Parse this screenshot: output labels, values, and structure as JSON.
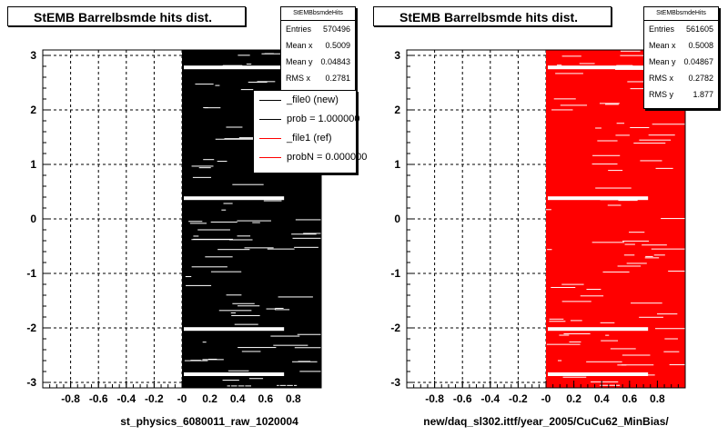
{
  "chart_data": [
    {
      "type": "heatmap",
      "title": "StEMB Barrelbsmde hits dist.",
      "xlabel": "st_physics_6080011_raw_1020004",
      "ylabel": "",
      "xlim": [
        -1,
        1
      ],
      "ylim": [
        -3.1,
        3.1
      ],
      "x_ticks": [
        -0.8,
        -0.6,
        -0.4,
        -0.2,
        0,
        0.2,
        0.4,
        0.6,
        0.8
      ],
      "x_tick_labels": [
        "-0.8",
        "-0.6",
        "-0.4",
        "-0.2",
        "-0",
        "0.2",
        "0.4",
        "0.6",
        "0.8"
      ],
      "y_ticks": [
        -3,
        -2,
        -1,
        0,
        1,
        2,
        3
      ],
      "y_tick_labels": [
        "-3",
        "-2",
        "-1",
        "0",
        "1",
        "2",
        "3"
      ],
      "grid": true,
      "fill_color": "#000000",
      "filled_x_range": [
        0,
        1
      ],
      "filled_y_range": [
        -3.1,
        3.1
      ],
      "gap_bands_y": [
        2.78,
        0.38,
        -2.02,
        -2.85
      ],
      "stats": {
        "title": "StEMBbsmdeHits",
        "rows": [
          {
            "label": "Entries",
            "value": "570496"
          },
          {
            "label": "Mean x",
            "value": "0.5009"
          },
          {
            "label": "Mean y",
            "value": "0.04843"
          },
          {
            "label": "RMS x",
            "value": "0.2781"
          }
        ]
      },
      "legend": {
        "placement": "top-right",
        "entries": [
          {
            "label": "_file0 (new)",
            "color": "#000000"
          },
          {
            "label": "prob = 1.000000",
            "color": "#000000"
          },
          {
            "label": "_file1 (ref)",
            "color": "#ff0000"
          },
          {
            "label": "probN = 0.000000",
            "color": "#ff0000"
          }
        ]
      }
    },
    {
      "type": "heatmap",
      "title": "StEMB Barrelbsmde hits dist.",
      "xlabel": "new/daq_sl302.ittf/year_2005/CuCu62_MinBias/",
      "ylabel": "",
      "xlim": [
        -1,
        1
      ],
      "ylim": [
        -3.1,
        3.1
      ],
      "x_ticks": [
        -0.8,
        -0.6,
        -0.4,
        -0.2,
        0,
        0.2,
        0.4,
        0.6,
        0.8
      ],
      "x_tick_labels": [
        "-0.8",
        "-0.6",
        "-0.4",
        "-0.2",
        "-0",
        "0.2",
        "0.4",
        "0.6",
        "0.8"
      ],
      "y_ticks": [
        -3,
        -2,
        -1,
        0,
        1,
        2,
        3
      ],
      "y_tick_labels": [
        "-3",
        "-2",
        "-1",
        "0",
        "1",
        "2",
        "3"
      ],
      "grid": true,
      "fill_color": "#ff0000",
      "filled_x_range": [
        0,
        1
      ],
      "filled_y_range": [
        -3.1,
        3.1
      ],
      "gap_bands_y": [
        2.78,
        0.38,
        -2.02,
        -2.85
      ],
      "stats": {
        "title": "StEMBbsmdeHits",
        "rows": [
          {
            "label": "Entries",
            "value": "561605"
          },
          {
            "label": "Mean x",
            "value": "0.5008"
          },
          {
            "label": "Mean y",
            "value": "0.04867"
          },
          {
            "label": "RMS x",
            "value": "0.2782"
          },
          {
            "label": "RMS y",
            "value": "1.877"
          }
        ]
      }
    }
  ]
}
